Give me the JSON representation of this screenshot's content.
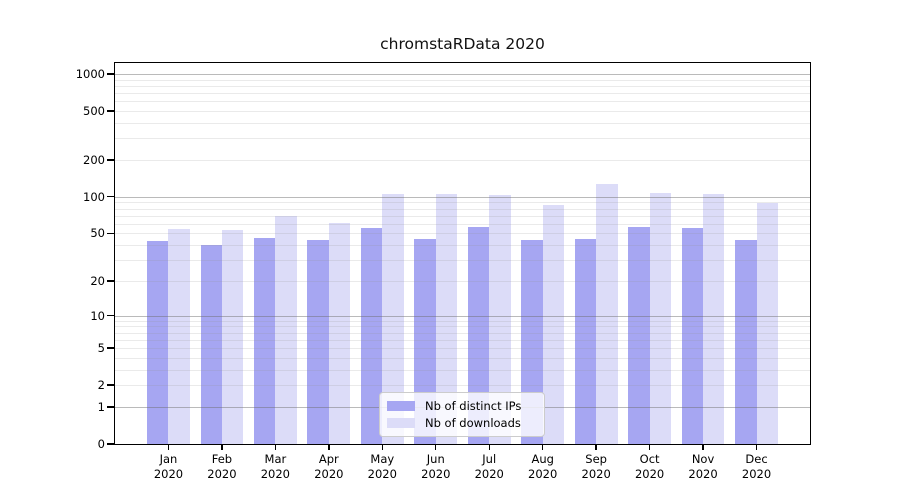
{
  "figure": {
    "background": "#ffffff"
  },
  "chart_data": {
    "type": "bar",
    "title": "chromstaRData 2020",
    "categories": [
      "Jan",
      "Feb",
      "Mar",
      "Apr",
      "May",
      "Jun",
      "Jul",
      "Aug",
      "Sep",
      "Oct",
      "Nov",
      "Dec"
    ],
    "category_year_line": "2020",
    "series": [
      {
        "name": "Nb of distinct IPs",
        "color": "#a6a6f2",
        "values": [
          43,
          40,
          46,
          44,
          55,
          45,
          57,
          44,
          45,
          57,
          55,
          44
        ]
      },
      {
        "name": "Nb of downloads",
        "color": "#dcdcf8",
        "values": [
          54,
          53,
          70,
          61,
          106,
          105,
          104,
          86,
          127,
          108,
          105,
          89
        ]
      }
    ],
    "yscale": "log1p",
    "ylim": [
      0,
      1000
    ],
    "y_ticks": [
      1000,
      500,
      200,
      100,
      50,
      20,
      10,
      5,
      2,
      1,
      0
    ],
    "grid": {
      "orientation": "horizontal",
      "major_at": [
        1,
        10,
        100,
        1000
      ],
      "minor": "log-decade-subdivisions",
      "major_color": "#b0b0b0",
      "minor_color": "#e9e9e9"
    },
    "legend": {
      "position": "inside-bottom-center"
    },
    "axis_color": "#000000"
  }
}
